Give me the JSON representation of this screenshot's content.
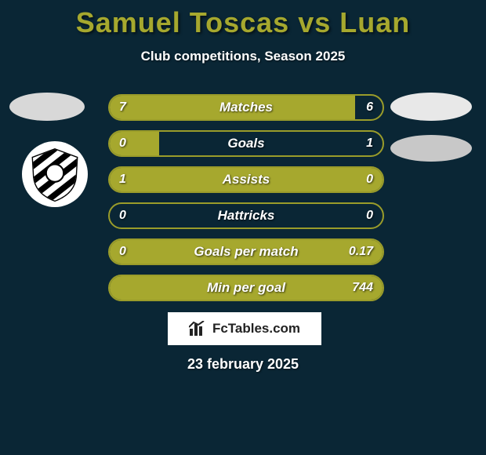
{
  "title": "Samuel Toscas vs Luan",
  "title_color": "#a6a82e",
  "subtitle": "Club competitions, Season 2025",
  "bar_color": "#a6a82e",
  "bar_border_color": "#9a9c2a",
  "background_color": "#0a2635",
  "stats": [
    {
      "label": "Matches",
      "left_val": "7",
      "right_val": "6",
      "left_pct": 90,
      "right_pct": 0
    },
    {
      "label": "Goals",
      "left_val": "0",
      "right_val": "1",
      "left_pct": 18,
      "right_pct": 0
    },
    {
      "label": "Assists",
      "left_val": "1",
      "right_val": "0",
      "left_pct": 100,
      "right_pct": 0
    },
    {
      "label": "Hattricks",
      "left_val": "0",
      "right_val": "0",
      "left_pct": 0,
      "right_pct": 0
    },
    {
      "label": "Goals per match",
      "left_val": "0",
      "right_val": "0.17",
      "left_pct": 0,
      "right_pct": 100
    },
    {
      "label": "Min per goal",
      "left_val": "",
      "right_val": "744",
      "left_pct": 0,
      "right_pct": 100
    }
  ],
  "footer_brand": "FcTables.com",
  "footer_date": "23 february 2025"
}
